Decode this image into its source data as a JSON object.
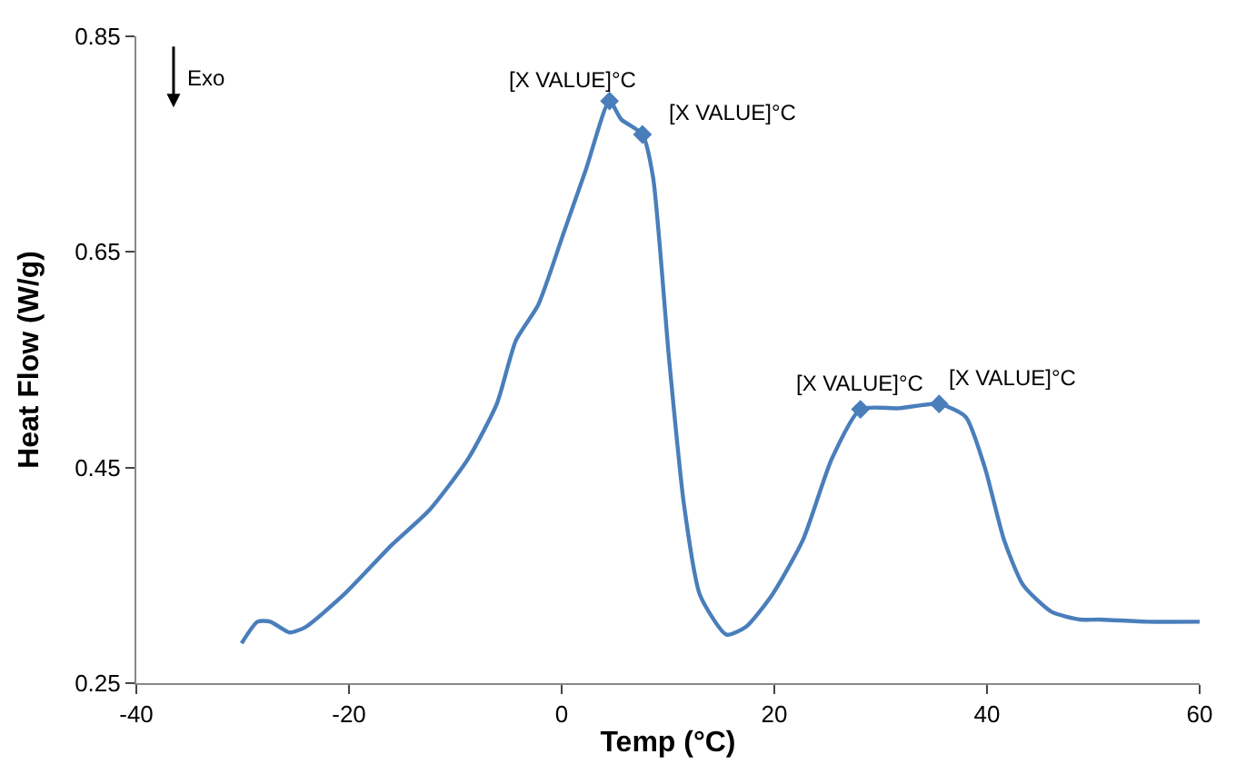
{
  "chart_data": {
    "type": "line",
    "xlabel": "Temp (°C)",
    "ylabel": "Heat Flow (W/g)",
    "xlim": [
      -40,
      60
    ],
    "xticks": [
      -40,
      -20,
      0,
      20,
      40,
      60
    ],
    "ylim": [
      0.25,
      0.85
    ],
    "yticks": [
      0.25,
      0.45,
      0.65,
      0.85
    ],
    "series": [
      {
        "color": "#4a7ebb",
        "marker": "none",
        "line_style": "solid",
        "x": [
          -30.1,
          -28.6,
          -27.4,
          -25.6,
          -24.1,
          -20.5,
          -16,
          -12.4,
          -8.8,
          -6.1,
          -4.3,
          -2.2,
          0.2,
          2.3,
          4.5,
          5.6,
          7.6,
          8.6,
          10.1,
          11.5,
          13,
          15.5,
          17.3,
          19.8,
          22.7,
          25.4,
          28.1,
          31.7,
          35.5,
          38,
          39.8,
          41.6,
          43.4,
          46.1,
          48.8,
          50.6,
          55.1,
          60
        ],
        "values": [
          0.287,
          0.307,
          0.307,
          0.297,
          0.302,
          0.332,
          0.378,
          0.411,
          0.458,
          0.509,
          0.568,
          0.601,
          0.668,
          0.727,
          0.79,
          0.773,
          0.759,
          0.719,
          0.551,
          0.416,
          0.332,
          0.295,
          0.302,
          0.332,
          0.383,
          0.458,
          0.504,
          0.505,
          0.509,
          0.497,
          0.45,
          0.383,
          0.341,
          0.316,
          0.309,
          0.309,
          0.307,
          0.307
        ]
      },
      {
        "type": "scatter",
        "color": "#4a7ebb",
        "marker": "diamond",
        "x": [
          4.5,
          7.6,
          28.1,
          35.5
        ],
        "values": [
          0.79,
          0.759,
          0.504,
          0.509
        ]
      }
    ],
    "annotations": [
      {
        "text": "[X VALUE]°C",
        "x": 4.5,
        "y": 0.79
      },
      {
        "text": "[X VALUE]°C",
        "x": 7.6,
        "y": 0.759
      },
      {
        "text": "[X VALUE]°C",
        "x": 28.1,
        "y": 0.504
      },
      {
        "text": "[X VALUE]°C",
        "x": 35.5,
        "y": 0.509
      },
      "Exo"
    ]
  }
}
